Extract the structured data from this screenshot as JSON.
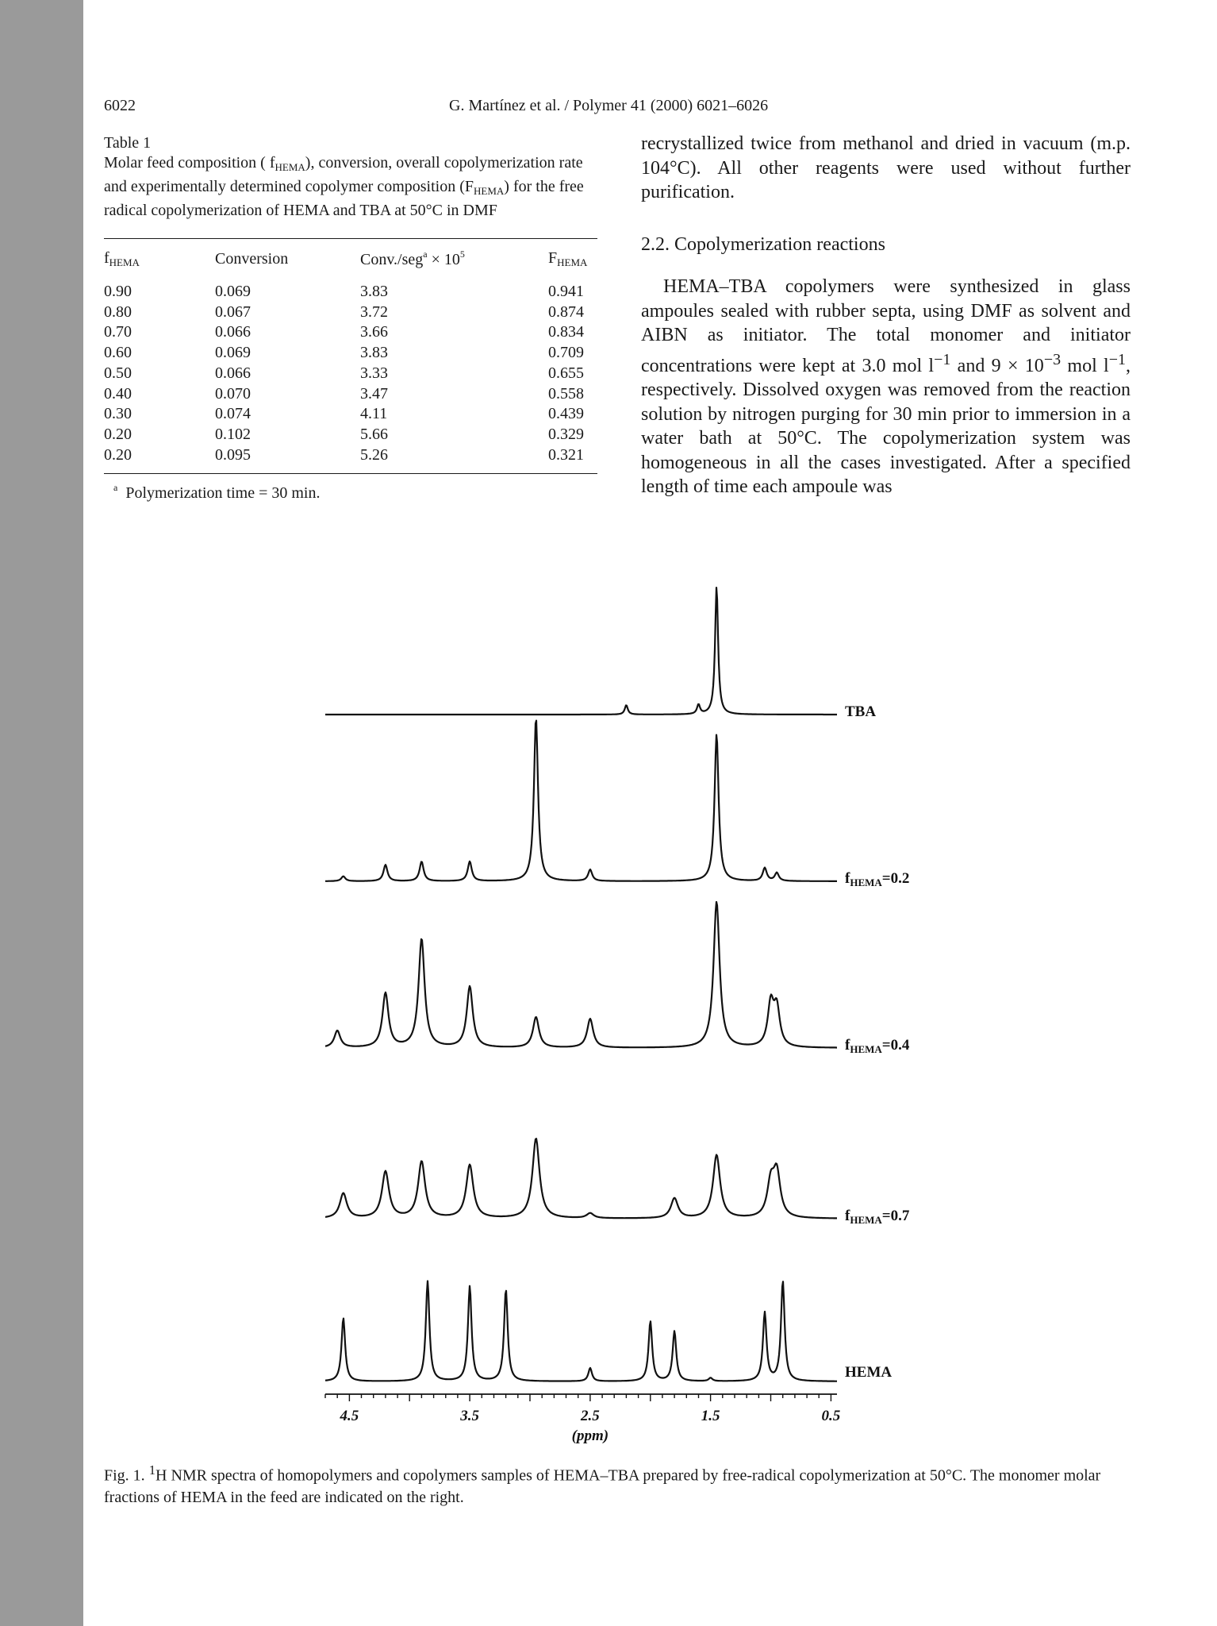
{
  "header": {
    "page_number": "6022",
    "running_title": "G. Martínez et al. / Polymer 41 (2000) 6021–6026"
  },
  "table": {
    "label": "Table 1",
    "caption_part1": "Molar feed composition ( f",
    "caption_sub1": "HEMA",
    "caption_part2": "), conversion, overall copolymerization rate and experimentally determined copolymer composition (F",
    "caption_sub2": "HEMA",
    "caption_part3": ") for the free radical copolymerization of HEMA and TBA at 50°C in DMF",
    "headers": {
      "c1_main": "f",
      "c1_sub": "HEMA",
      "c2": "Conversion",
      "c3_main": "Conv./seg",
      "c3_sup": "a",
      "c3_tail": " × 10",
      "c3_sup2": "5",
      "c4_main": "F",
      "c4_sub": "HEMA"
    },
    "rows": [
      [
        "0.90",
        "0.069",
        "3.83",
        "0.941"
      ],
      [
        "0.80",
        "0.067",
        "3.72",
        "0.874"
      ],
      [
        "0.70",
        "0.066",
        "3.66",
        "0.834"
      ],
      [
        "0.60",
        "0.069",
        "3.83",
        "0.709"
      ],
      [
        "0.50",
        "0.066",
        "3.33",
        "0.655"
      ],
      [
        "0.40",
        "0.070",
        "3.47",
        "0.558"
      ],
      [
        "0.30",
        "0.074",
        "4.11",
        "0.439"
      ],
      [
        "0.20",
        "0.102",
        "5.66",
        "0.329"
      ],
      [
        "0.20",
        "0.095",
        "5.26",
        "0.321"
      ]
    ],
    "footnote_mark": "a",
    "footnote_text": "Polymerization time = 30 min."
  },
  "right_column": {
    "para1": "recrystallized twice from methanol and dried in vacuum (m.p. 104°C). All other reagents were used without further purification.",
    "section_heading": "2.2. Copolymerization reactions",
    "p2_a": "HEMA–TBA copolymers were synthesized in glass ampoules sealed with rubber septa, using DMF as solvent and AIBN as initiator. The total monomer and initiator concentrations were kept at 3.0 mol l",
    "p2_sup1": "−1",
    "p2_b": " and 9 × 10",
    "p2_sup2": "−3",
    "p2_c": " mol l",
    "p2_sup3": "−1",
    "p2_d": ", respectively. Dissolved oxygen was removed from the reaction solution by nitrogen purging for 30 min prior to immersion in a water bath at 50°C. The copolymerization system was homogeneous in all the cases investigated. After a specified length of time each ampoule was"
  },
  "figure": {
    "trace_labels": {
      "tba": "TBA",
      "f02_main": "f",
      "f02_sub": "HEMA",
      "f02_val": "=0.2",
      "f04_main": "f",
      "f04_sub": "HEMA",
      "f04_val": "=0.4",
      "f07_main": "f",
      "f07_sub": "HEMA",
      "f07_val": "=0.7",
      "hema": "HEMA"
    },
    "axis_ticks": [
      "4.5",
      "3.5",
      "2.5",
      "1.5",
      "0.5"
    ],
    "axis_unit": "(ppm)",
    "caption_a": "Fig. 1. ",
    "caption_sup": "1",
    "caption_b": "H NMR spectra of homopolymers and copolymers samples of HEMA–TBA prepared by free-radical copolymerization at 50°C. The monomer molar fractions of HEMA in the feed are indicated on the right."
  },
  "chart_data": {
    "type": "line",
    "xlabel": "(ppm)",
    "xlim": [
      4.7,
      0.45
    ],
    "xticks": [
      4.5,
      3.5,
      2.5,
      1.5,
      0.5
    ],
    "grid": false,
    "legend": "labels at right end of each trace",
    "series": [
      {
        "name": "TBA",
        "peaks": [
          [
            2.2,
            0.07
          ],
          [
            1.6,
            0.07
          ],
          [
            1.45,
            0.95
          ]
        ]
      },
      {
        "name": "fHEMA=0.2",
        "peaks": [
          [
            4.55,
            0.03
          ],
          [
            4.2,
            0.1
          ],
          [
            3.9,
            0.12
          ],
          [
            3.5,
            0.12
          ],
          [
            2.95,
            1.0
          ],
          [
            2.5,
            0.07
          ],
          [
            1.45,
            0.9
          ],
          [
            1.05,
            0.08
          ],
          [
            0.95,
            0.05
          ]
        ]
      },
      {
        "name": "fHEMA=0.4",
        "peaks": [
          [
            4.6,
            0.1
          ],
          [
            4.2,
            0.32
          ],
          [
            3.9,
            0.64
          ],
          [
            3.5,
            0.36
          ],
          [
            2.95,
            0.18
          ],
          [
            2.5,
            0.17
          ],
          [
            1.45,
            0.86
          ],
          [
            1.0,
            0.25
          ],
          [
            0.95,
            0.22
          ]
        ]
      },
      {
        "name": "fHEMA=0.7",
        "peaks": [
          [
            4.55,
            0.15
          ],
          [
            4.2,
            0.28
          ],
          [
            3.9,
            0.34
          ],
          [
            3.5,
            0.32
          ],
          [
            2.95,
            0.48
          ],
          [
            2.5,
            0.03
          ],
          [
            1.8,
            0.12
          ],
          [
            1.45,
            0.38
          ],
          [
            1.0,
            0.2
          ],
          [
            0.95,
            0.26
          ]
        ]
      },
      {
        "name": "HEMA",
        "peaks": [
          [
            4.55,
            0.38
          ],
          [
            3.85,
            0.6
          ],
          [
            3.5,
            0.57
          ],
          [
            3.2,
            0.55
          ],
          [
            2.5,
            0.08
          ],
          [
            2.0,
            0.36
          ],
          [
            1.8,
            0.3
          ],
          [
            1.5,
            0.02
          ],
          [
            1.05,
            0.41
          ],
          [
            0.9,
            0.6
          ]
        ]
      }
    ]
  }
}
